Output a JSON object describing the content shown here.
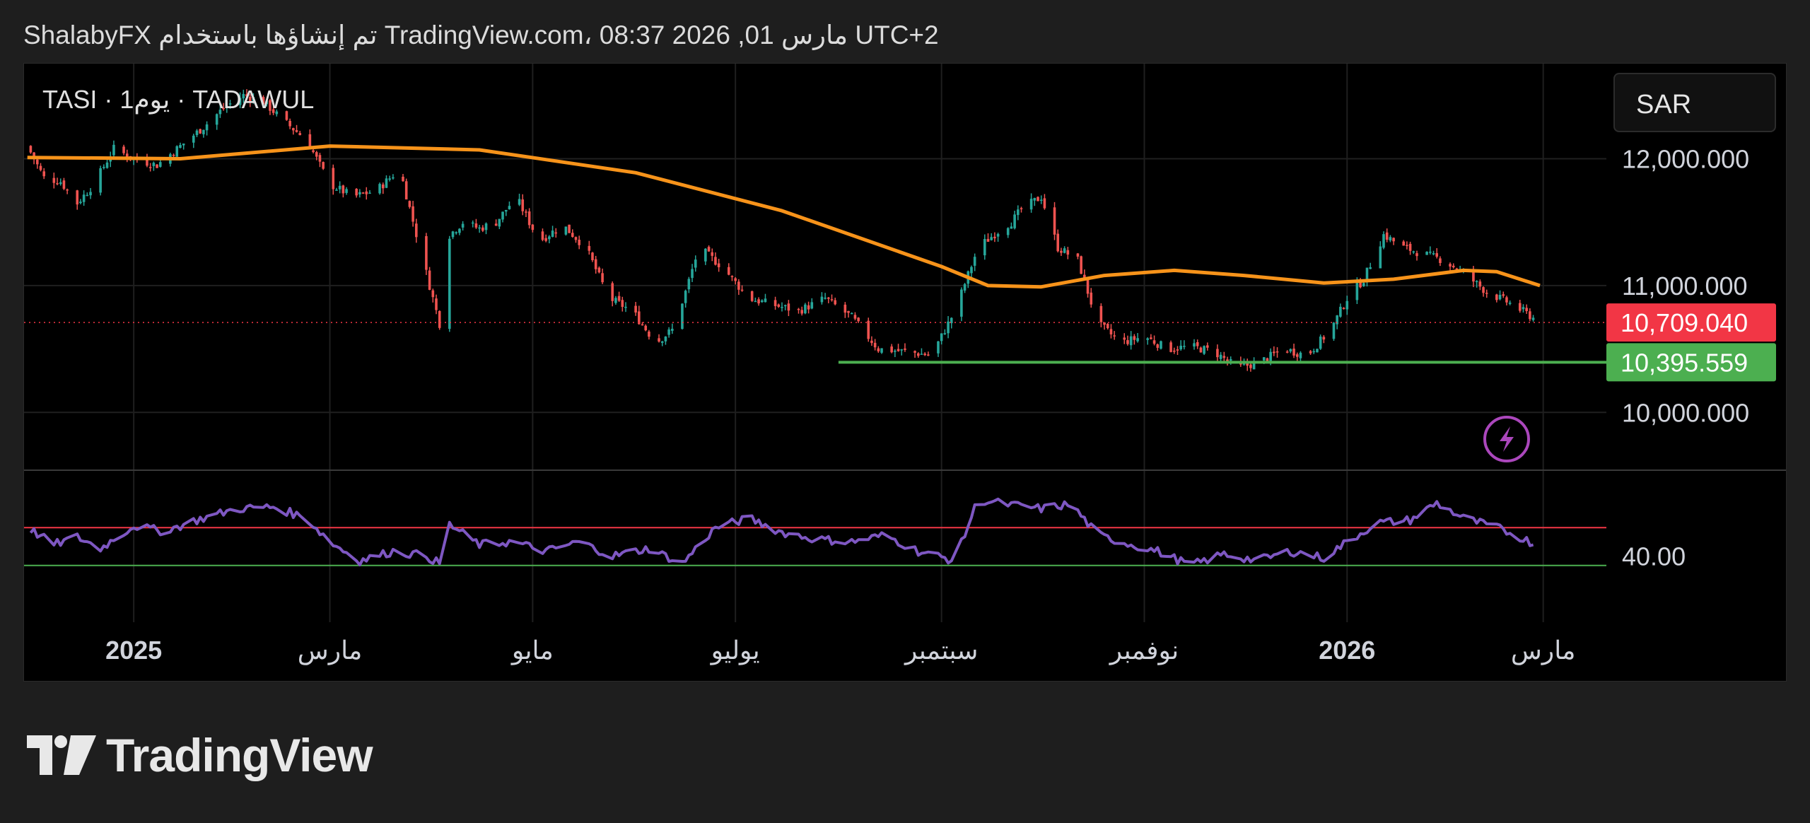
{
  "header": {
    "text": "ShalabyFX تم إنشاؤها باستخدام TradingView.com، 08:37 2026 ,01 مارس UTC+2"
  },
  "chart": {
    "symbol_line": "TASI · 1يوم · TADAWUL",
    "currency_label": "SAR",
    "alert_icon": "lightning-icon",
    "colors": {
      "up_candle": "#26a69a",
      "down_candle": "#ef5350",
      "moving_average": "#f7931a",
      "support_line": "#4caf50",
      "current_price_badge": "#f23645",
      "support_badge": "#4caf50",
      "rsi_line": "#7e57c2",
      "rsi_upper_band": "#f23645",
      "rsi_lower_band": "#4caf50",
      "grid": "#1f1f1f"
    }
  },
  "footer": {
    "logo_text": "TradingView",
    "logo_icon": "tradingview-logo-icon"
  },
  "chart_data": {
    "type": "candlestick",
    "title": "TASI · 1يوم · TADAWUL",
    "ylabel": "SAR",
    "ylim": [
      9550,
      12750
    ],
    "yticks": [
      {
        "value": 12000,
        "label": "12,000.000"
      },
      {
        "value": 11000,
        "label": "11,000.000"
      },
      {
        "value": 10000,
        "label": "10,000.000"
      }
    ],
    "x_range": [
      "2024-11-29",
      "2026-03-20"
    ],
    "x_ticks": [
      {
        "date": "2025-01-01",
        "label": "2025",
        "bold": true
      },
      {
        "date": "2025-03-01",
        "label": "مارس",
        "bold": false
      },
      {
        "date": "2025-05-01",
        "label": "مايو",
        "bold": false
      },
      {
        "date": "2025-07-01",
        "label": "يوليو",
        "bold": false
      },
      {
        "date": "2025-09-01",
        "label": "سبتمبر",
        "bold": false
      },
      {
        "date": "2025-11-01",
        "label": "نوفمبر",
        "bold": false
      },
      {
        "date": "2026-01-01",
        "label": "2026",
        "bold": true
      },
      {
        "date": "2026-03-01",
        "label": "مارس",
        "bold": false
      }
    ],
    "series": [
      {
        "name": "",
        "kind": "close",
        "x": [
          "2024-11-30",
          "2024-12-05",
          "2024-12-10",
          "2024-12-15",
          "2024-12-20",
          "2024-12-26",
          "2025-01-01",
          "2025-01-08",
          "2025-01-15",
          "2025-01-22",
          "2025-01-28",
          "2025-02-03",
          "2025-02-09",
          "2025-02-15",
          "2025-02-22",
          "2025-03-01",
          "2025-03-08",
          "2025-03-15",
          "2025-03-22",
          "2025-03-29",
          "2025-04-03",
          "2025-04-06",
          "2025-04-10",
          "2025-04-15",
          "2025-04-20",
          "2025-04-26",
          "2025-05-03",
          "2025-05-10",
          "2025-05-17",
          "2025-05-24",
          "2025-05-31",
          "2025-06-07",
          "2025-06-12",
          "2025-06-16",
          "2025-06-20",
          "2025-06-27",
          "2025-07-05",
          "2025-07-12",
          "2025-07-20",
          "2025-07-28",
          "2025-08-05",
          "2025-08-13",
          "2025-08-21",
          "2025-08-29",
          "2025-09-05",
          "2025-09-12",
          "2025-09-19",
          "2025-09-22",
          "2025-09-25",
          "2025-10-01",
          "2025-10-06",
          "2025-10-12",
          "2025-10-18",
          "2025-10-25",
          "2025-11-01",
          "2025-11-08",
          "2025-11-15",
          "2025-11-22",
          "2025-11-29",
          "2025-12-06",
          "2025-12-13",
          "2025-12-20",
          "2025-12-27",
          "2026-01-01",
          "2026-01-06",
          "2026-01-12",
          "2026-01-18",
          "2026-01-24",
          "2026-01-30",
          "2026-02-05",
          "2026-02-12",
          "2026-02-19",
          "2026-02-24",
          "2026-02-28"
        ],
        "values": [
          12100,
          11850,
          11820,
          11650,
          11800,
          12080,
          12000,
          11950,
          12100,
          12250,
          12400,
          12500,
          12450,
          12300,
          12150,
          11800,
          11700,
          11750,
          11920,
          11200,
          10700,
          11400,
          11500,
          11450,
          11500,
          11700,
          11350,
          11480,
          11300,
          10900,
          10800,
          10550,
          10650,
          10950,
          11300,
          11150,
          10900,
          10850,
          10800,
          10900,
          10750,
          10500,
          10480,
          10450,
          10800,
          11300,
          11450,
          11500,
          11600,
          11700,
          11300,
          11200,
          10700,
          10550,
          10600,
          10500,
          10520,
          10480,
          10350,
          10400,
          10500,
          10450,
          10650,
          10900,
          11050,
          11400,
          11300,
          11250,
          11200,
          11100,
          10950,
          10860,
          10780,
          10709
        ]
      },
      {
        "name": "",
        "kind": "moving_average",
        "x": [
          "2024-11-30",
          "2025-01-15",
          "2025-03-01",
          "2025-04-15",
          "2025-06-01",
          "2025-07-15",
          "2025-09-01",
          "2025-09-15",
          "2025-10-01",
          "2025-10-20",
          "2025-11-10",
          "2025-12-01",
          "2025-12-25",
          "2026-01-15",
          "2026-02-05",
          "2026-02-15",
          "2026-02-28"
        ],
        "values": [
          12010,
          12000,
          12100,
          12070,
          11890,
          11590,
          11150,
          11000,
          10990,
          11080,
          11120,
          11080,
          11020,
          11050,
          11120,
          11110,
          11000
        ]
      },
      {
        "name": "",
        "kind": "horizontal_line",
        "x_start": "2025-08-01",
        "value": 10395.559
      }
    ],
    "price_labels": [
      {
        "value": 10709.04,
        "label": "10,709.040",
        "kind": "current"
      },
      {
        "value": 10395.559,
        "label": "10,395.559",
        "kind": "support"
      }
    ],
    "rsi": {
      "upper_band": 70,
      "lower_band": 30,
      "ylim": [
        -30,
        130
      ],
      "tick_labels": [
        {
          "value": 40,
          "label": "40.00"
        }
      ],
      "x": [
        "2024-11-30",
        "2024-12-08",
        "2024-12-15",
        "2024-12-22",
        "2025-01-01",
        "2025-01-10",
        "2025-01-20",
        "2025-02-01",
        "2025-02-12",
        "2025-02-22",
        "2025-03-01",
        "2025-03-10",
        "2025-03-20",
        "2025-03-30",
        "2025-04-03",
        "2025-04-06",
        "2025-04-15",
        "2025-04-25",
        "2025-05-05",
        "2025-05-15",
        "2025-05-25",
        "2025-06-05",
        "2025-06-15",
        "2025-06-25",
        "2025-07-05",
        "2025-07-15",
        "2025-07-25",
        "2025-08-05",
        "2025-08-15",
        "2025-08-25",
        "2025-09-05",
        "2025-09-12",
        "2025-09-20",
        "2025-10-01",
        "2025-10-10",
        "2025-10-18",
        "2025-10-25",
        "2025-11-05",
        "2025-11-15",
        "2025-11-25",
        "2025-12-05",
        "2025-12-15",
        "2025-12-25",
        "2026-01-01",
        "2026-01-10",
        "2026-01-20",
        "2026-01-28",
        "2026-02-05",
        "2026-02-15",
        "2026-02-22",
        "2026-02-28"
      ],
      "values": [
        70,
        52,
        60,
        48,
        72,
        66,
        78,
        90,
        92,
        80,
        55,
        35,
        45,
        40,
        32,
        73,
        52,
        55,
        45,
        55,
        40,
        48,
        32,
        70,
        80,
        65,
        58,
        55,
        62,
        45,
        35,
        100,
        95,
        90,
        95,
        62,
        55,
        45,
        30,
        42,
        35,
        45,
        38,
        55,
        75,
        78,
        96,
        80,
        70,
        60,
        50
      ]
    }
  }
}
